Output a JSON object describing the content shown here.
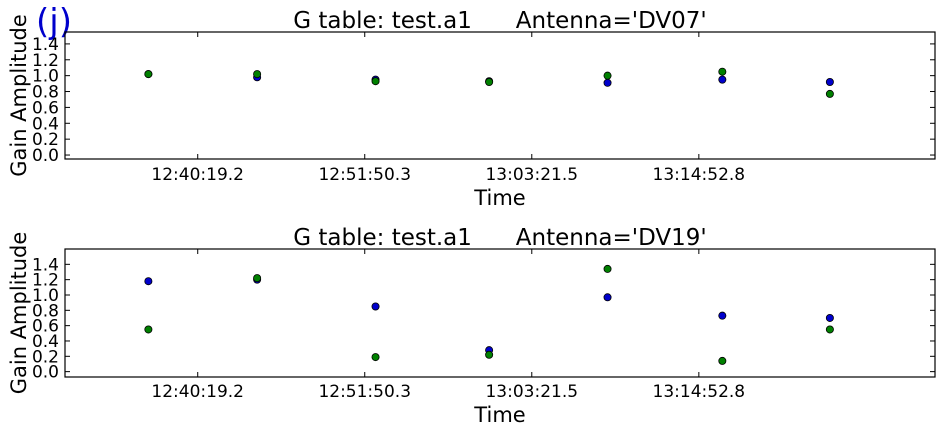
{
  "panel_label": "(j)",
  "colors": {
    "series_1": "#0000cc",
    "series_2": "#008000",
    "marker_edge": "#000000",
    "panel_label": "#0000cc"
  },
  "chart_data": [
    {
      "type": "scatter",
      "title": "G table: test.a1      Antenna='DV07'",
      "xlabel": "Time",
      "ylabel": "Gain Amplitude",
      "x_ticks": [
        "12:40:19.2",
        "12:51:50.3",
        "13:03:21.5",
        "13:14:52.8"
      ],
      "x_tick_seconds": [
        45619.2,
        46310.3,
        47001.5,
        47692.8
      ],
      "x": [
        "12:36:55",
        "12:44:25",
        "12:52:35",
        "13:00:25",
        "13:08:35",
        "13:16:30",
        "13:23:55"
      ],
      "x_seconds": [
        45415,
        45865,
        46355,
        46825,
        47315,
        47790,
        48235
      ],
      "xlim": [
        45070,
        48670
      ],
      "ylim": [
        -0.05,
        1.55
      ],
      "y_ticks": [
        0.0,
        0.2,
        0.4,
        0.6,
        0.8,
        1.0,
        1.2,
        1.4
      ],
      "grid": false,
      "series": [
        {
          "values": [
            1.02,
            0.98,
            0.95,
            0.93,
            0.91,
            0.95,
            0.92
          ]
        },
        {
          "values": [
            1.02,
            1.02,
            0.93,
            0.92,
            1.0,
            1.05,
            0.77
          ]
        }
      ]
    },
    {
      "type": "scatter",
      "title": "G table: test.a1      Antenna='DV19'",
      "xlabel": "Time",
      "ylabel": "Gain Amplitude",
      "x_ticks": [
        "12:40:19.2",
        "12:51:50.3",
        "13:03:21.5",
        "13:14:52.8"
      ],
      "x_tick_seconds": [
        45619.2,
        46310.3,
        47001.5,
        47692.8
      ],
      "x": [
        "12:36:55",
        "12:44:25",
        "12:52:35",
        "13:00:25",
        "13:08:35",
        "13:16:30",
        "13:23:55"
      ],
      "x_seconds": [
        45415,
        45865,
        46355,
        46825,
        47315,
        47790,
        48235
      ],
      "xlim": [
        45070,
        48670
      ],
      "ylim": [
        -0.07,
        1.6
      ],
      "y_ticks": [
        0.0,
        0.2,
        0.4,
        0.6,
        0.8,
        1.0,
        1.2,
        1.4
      ],
      "grid": false,
      "series": [
        {
          "values": [
            1.18,
            1.2,
            0.85,
            0.28,
            0.97,
            0.73,
            0.7
          ]
        },
        {
          "values": [
            0.55,
            1.22,
            0.19,
            0.22,
            1.34,
            0.14,
            0.55
          ]
        }
      ]
    }
  ]
}
